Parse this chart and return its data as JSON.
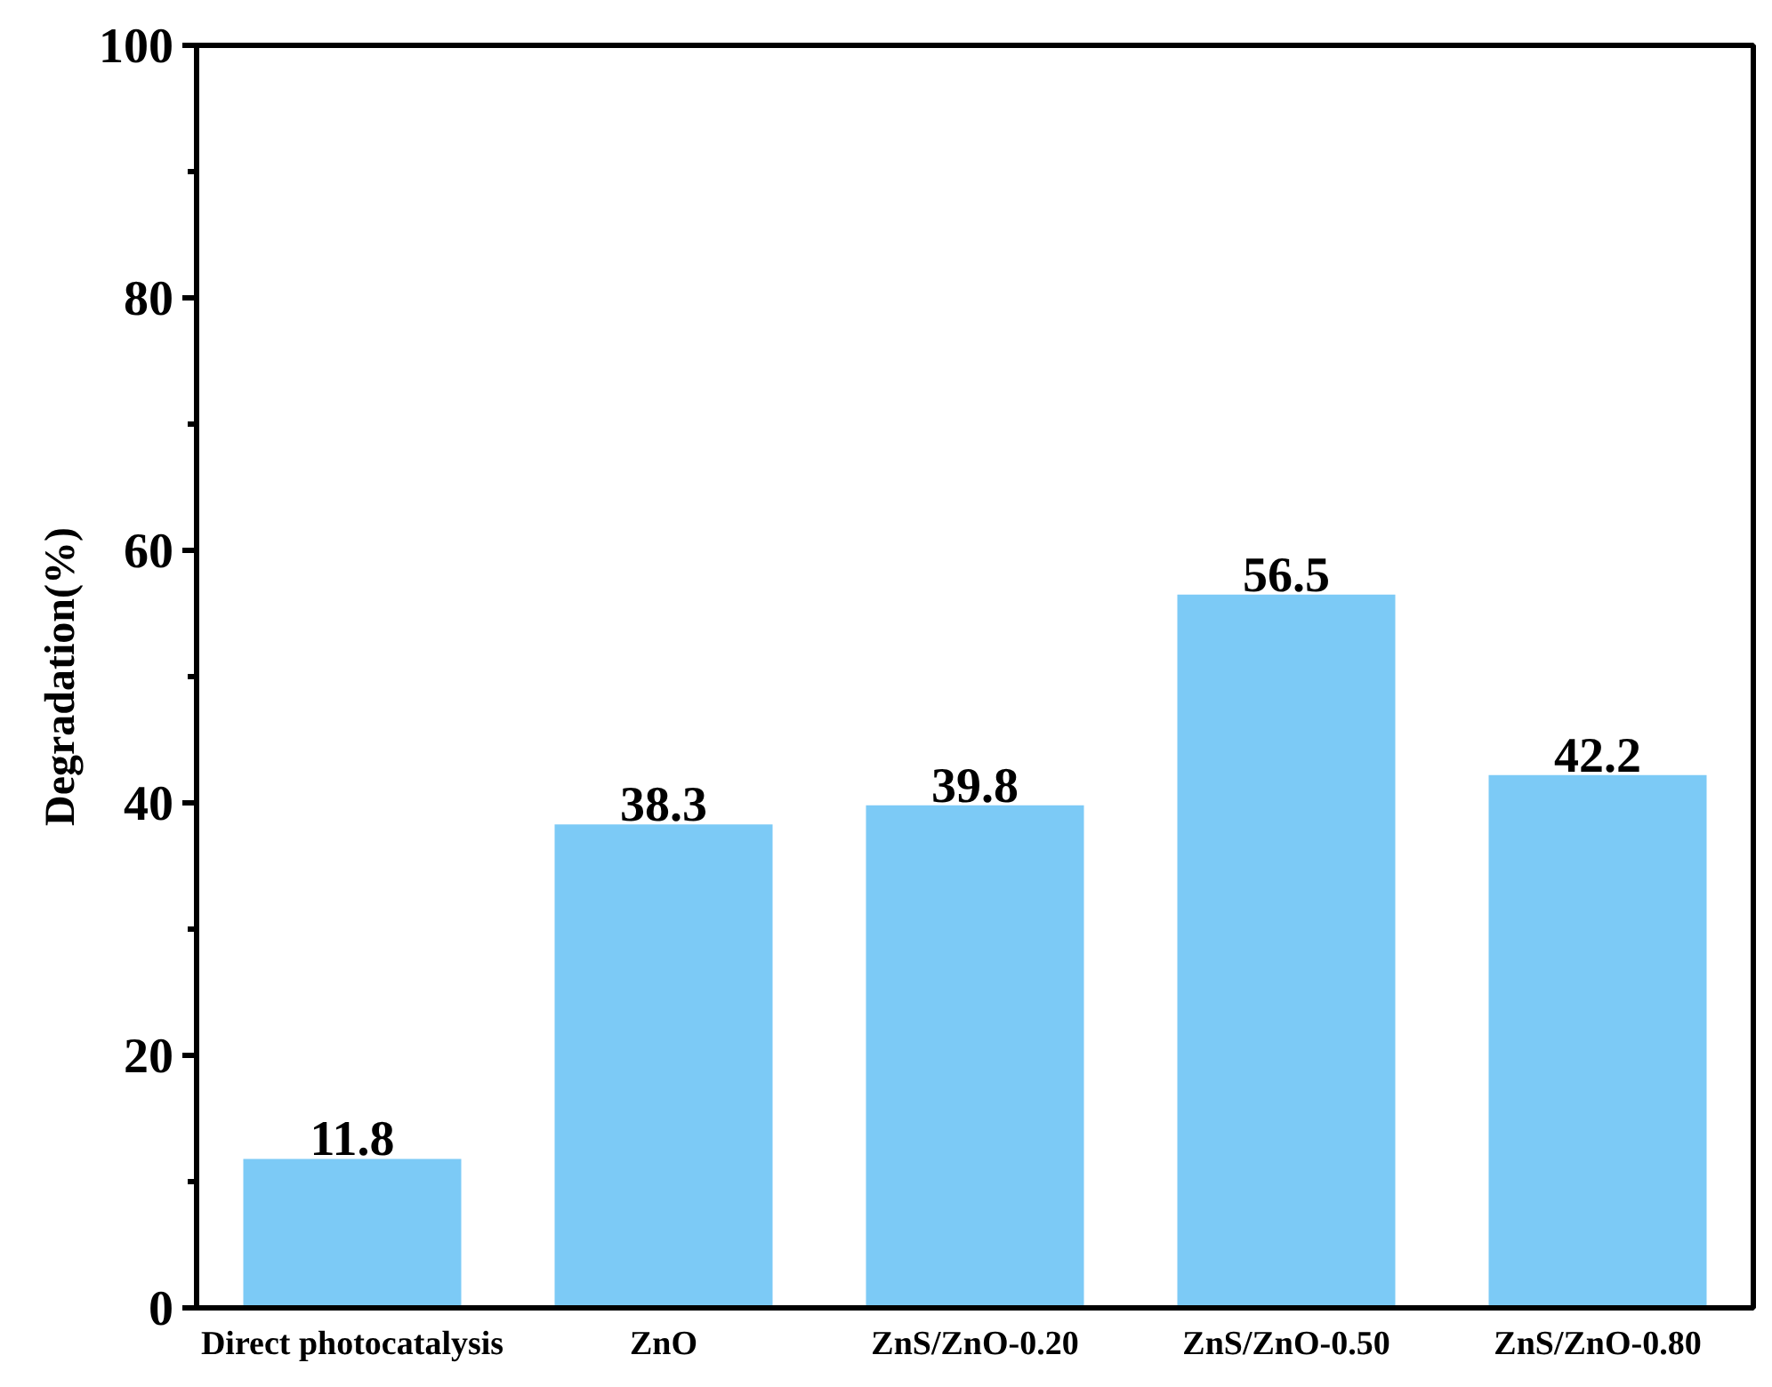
{
  "chart_data": {
    "type": "bar",
    "ylabel": "Degradation(%)",
    "categories": [
      "Direct photocatalysis",
      "ZnO",
      "ZnS/ZnO-0.20",
      "ZnS/ZnO-0.50",
      "ZnS/ZnO-0.80"
    ],
    "values": [
      11.8,
      38.3,
      39.8,
      56.5,
      42.2
    ],
    "color": "#7ccaf6",
    "ylim": [
      0,
      100
    ],
    "yticks": [
      0,
      20,
      40,
      60,
      80,
      100
    ],
    "data_labels": true
  }
}
